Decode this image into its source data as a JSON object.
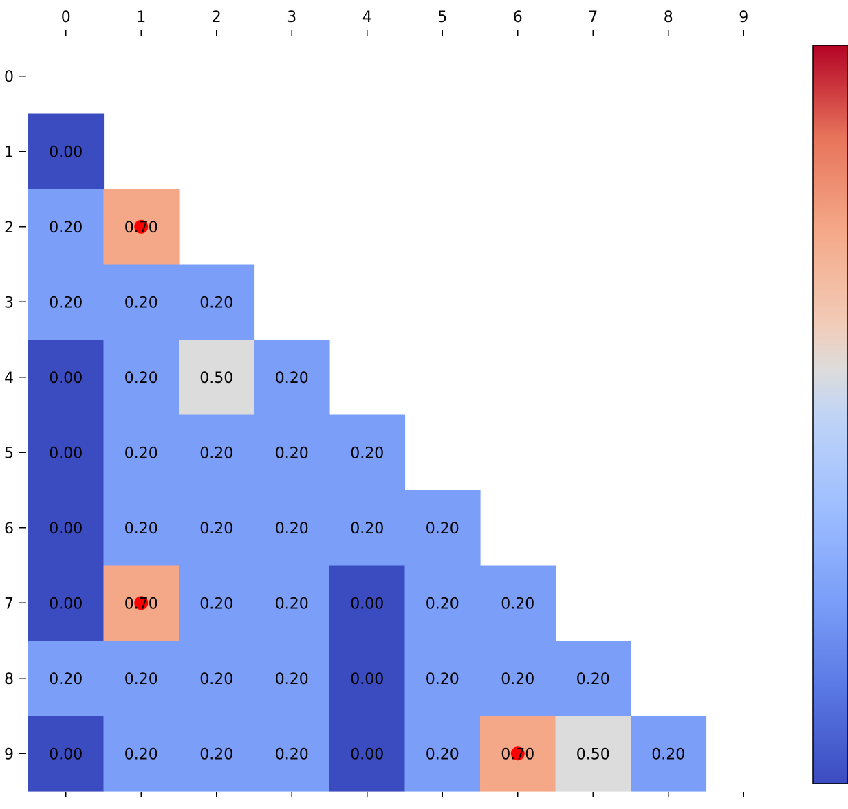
{
  "chart_data": {
    "type": "heatmap",
    "colormap": "coolwarm",
    "vmin": 0.0,
    "vmax": 1.0,
    "x_tick_labels": [
      "0",
      "1",
      "2",
      "3",
      "4",
      "5",
      "6",
      "7",
      "8",
      "9"
    ],
    "y_tick_labels": [
      "0",
      "1",
      "2",
      "3",
      "4",
      "5",
      "6",
      "7",
      "8",
      "9"
    ],
    "mask": "upper-triangle-including-diagonal",
    "values": [
      [
        null,
        null,
        null,
        null,
        null,
        null,
        null,
        null,
        null,
        null
      ],
      [
        0.0,
        null,
        null,
        null,
        null,
        null,
        null,
        null,
        null,
        null
      ],
      [
        0.2,
        0.7,
        null,
        null,
        null,
        null,
        null,
        null,
        null,
        null
      ],
      [
        0.2,
        0.2,
        0.2,
        null,
        null,
        null,
        null,
        null,
        null,
        null
      ],
      [
        0.0,
        0.2,
        0.5,
        0.2,
        null,
        null,
        null,
        null,
        null,
        null
      ],
      [
        0.0,
        0.2,
        0.2,
        0.2,
        0.2,
        null,
        null,
        null,
        null,
        null
      ],
      [
        0.0,
        0.2,
        0.2,
        0.2,
        0.2,
        0.2,
        null,
        null,
        null,
        null
      ],
      [
        0.0,
        0.7,
        0.2,
        0.2,
        0.0,
        0.2,
        0.2,
        null,
        null,
        null
      ],
      [
        0.2,
        0.2,
        0.2,
        0.2,
        0.0,
        0.2,
        0.2,
        0.2,
        null,
        null
      ],
      [
        0.0,
        0.2,
        0.2,
        0.2,
        0.0,
        0.2,
        0.7,
        0.5,
        0.2,
        null
      ]
    ],
    "value_format": "0.00",
    "highlighted_cells": [
      {
        "row": 2,
        "col": 1,
        "marker": "red-dot"
      },
      {
        "row": 7,
        "col": 1,
        "marker": "red-dot"
      },
      {
        "row": 9,
        "col": 6,
        "marker": "red-dot"
      }
    ],
    "colors": {
      "0.00": "#3b4cc0",
      "0.20": "#7b9ff9",
      "0.50": "#dddcdc",
      "0.70": "#f5a888",
      "marker": "#ff0000"
    },
    "colorbar": {
      "location": "right",
      "ticks_visible": false
    }
  }
}
